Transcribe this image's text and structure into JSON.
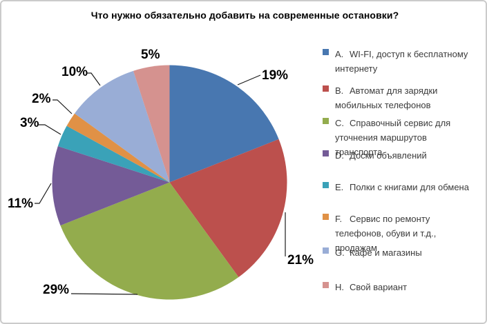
{
  "chart_data": {
    "type": "pie",
    "title": "Что нужно обязательно добавить на современные остановки?",
    "categories": [
      "A. WI-FI, доступ к бесплатному интернету",
      "B. Автомат для зарядки мобильных телефонов",
      "C. Справочный сервис для уточнения маршрутов транспорта",
      "D. Доски объявлений",
      "E. Полки с книгами для обмена",
      "F. Сервис по ремонту телефонов, обуви и т.д., продажам",
      "G. Кафе и магазины",
      "H. Свой вариант"
    ],
    "values": [
      19,
      21,
      29,
      11,
      3,
      2,
      10,
      5
    ],
    "labels": [
      "19%",
      "21%",
      "29%",
      "11%",
      "3%",
      "2%",
      "10%",
      "5%"
    ],
    "unit": "%",
    "colors": [
      "#4877B0",
      "#BC504D",
      "#93AC4D",
      "#745B97",
      "#3AA2B8",
      "#E09146",
      "#99ADD6",
      "#D5928F"
    ],
    "start_angle_deg": 0,
    "direction": "clockwise",
    "legend_position": "right",
    "grid": false
  },
  "legend": {
    "items": [
      {
        "key": "A.",
        "label": "WI-FI, доступ к бесплатному интернету",
        "color": "#4877B0"
      },
      {
        "key": "B.",
        "label": "Автомат для зарядки мобильных телефонов",
        "color": "#BC504D"
      },
      {
        "key": "C.",
        "label": "Справочный сервис для уточнения маршрутов транспорта",
        "color": "#93AC4D"
      },
      {
        "key": "D.",
        "label": "Доски объявлений",
        "color": "#745B97"
      },
      {
        "key": "E.",
        "label": "Полки с книгами для обмена",
        "color": "#3AA2B8"
      },
      {
        "key": "F.",
        "label": "Сервис по ремонту телефонов, обуви и т.д., продажам",
        "color": "#E09146"
      },
      {
        "key": "G.",
        "label": "Кафе и магазины",
        "color": "#99ADD6"
      },
      {
        "key": "H.",
        "label": "Свой вариант",
        "color": "#D5928F"
      }
    ]
  }
}
